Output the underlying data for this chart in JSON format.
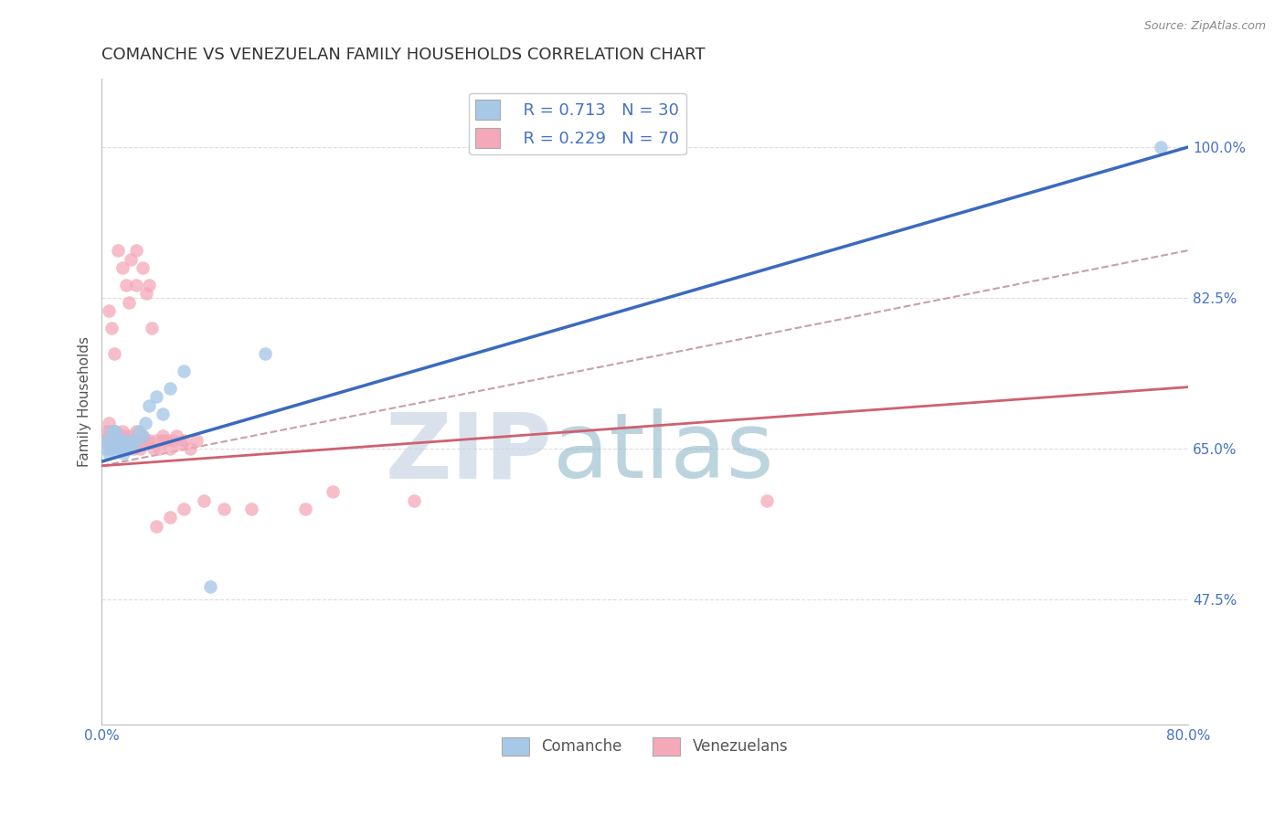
{
  "title": "COMANCHE VS VENEZUELAN FAMILY HOUSEHOLDS CORRELATION CHART",
  "source_text": "Source: ZipAtlas.com",
  "ylabel": "Family Households",
  "xlim": [
    0.0,
    0.8
  ],
  "ylim": [
    0.33,
    1.08
  ],
  "x_tick_labels": [
    "0.0%",
    "80.0%"
  ],
  "x_tick_positions": [
    0.0,
    0.8
  ],
  "y_tick_labels": [
    "47.5%",
    "65.0%",
    "82.5%",
    "100.0%"
  ],
  "y_tick_positions": [
    0.475,
    0.65,
    0.825,
    1.0
  ],
  "legend_R1": "R = 0.713",
  "legend_N1": "N = 30",
  "legend_R2": "R = 0.229",
  "legend_N2": "N = 70",
  "legend_label1": "Comanche",
  "legend_label2": "Venezuelans",
  "color_comanche": "#a8c8e8",
  "color_venezuelan": "#f4a8b8",
  "color_line_comanche": "#3a6abf",
  "color_line_venezuelan": "#d06070",
  "color_dashed": "#c8a0a8",
  "color_title": "#333333",
  "color_source": "#888888",
  "color_blue": "#4472c4",
  "color_ytick_labels": "#4472c4",
  "color_xtick_labels": "#4472c4",
  "title_fontsize": 13,
  "axis_label_fontsize": 11,
  "tick_fontsize": 11,
  "background_color": "#ffffff",
  "comanche_x": [
    0.003,
    0.004,
    0.005,
    0.006,
    0.007,
    0.008,
    0.009,
    0.01,
    0.01,
    0.011,
    0.012,
    0.013,
    0.015,
    0.016,
    0.018,
    0.02,
    0.02,
    0.022,
    0.025,
    0.027,
    0.03,
    0.032,
    0.035,
    0.04,
    0.045,
    0.05,
    0.06,
    0.08,
    0.12,
    0.78
  ],
  "comanche_y": [
    0.66,
    0.65,
    0.645,
    0.655,
    0.67,
    0.66,
    0.665,
    0.65,
    0.67,
    0.655,
    0.66,
    0.65,
    0.66,
    0.645,
    0.65,
    0.65,
    0.66,
    0.655,
    0.66,
    0.67,
    0.665,
    0.68,
    0.7,
    0.71,
    0.69,
    0.72,
    0.74,
    0.49,
    0.76,
    1.0
  ],
  "venezuelan_x": [
    0.002,
    0.003,
    0.004,
    0.005,
    0.005,
    0.006,
    0.007,
    0.007,
    0.008,
    0.009,
    0.01,
    0.01,
    0.011,
    0.012,
    0.013,
    0.014,
    0.015,
    0.015,
    0.016,
    0.017,
    0.018,
    0.019,
    0.02,
    0.02,
    0.021,
    0.022,
    0.023,
    0.025,
    0.025,
    0.027,
    0.028,
    0.03,
    0.03,
    0.032,
    0.033,
    0.035,
    0.037,
    0.038,
    0.04,
    0.042,
    0.045,
    0.045,
    0.048,
    0.05,
    0.052,
    0.055,
    0.058,
    0.06,
    0.065,
    0.07,
    0.005,
    0.007,
    0.009,
    0.012,
    0.015,
    0.018,
    0.02,
    0.025,
    0.03,
    0.035,
    0.04,
    0.05,
    0.06,
    0.075,
    0.09,
    0.11,
    0.15,
    0.17,
    0.23,
    0.49
  ],
  "venezuelan_y": [
    0.66,
    0.67,
    0.655,
    0.68,
    0.66,
    0.67,
    0.65,
    0.665,
    0.655,
    0.66,
    0.66,
    0.67,
    0.655,
    0.665,
    0.66,
    0.65,
    0.655,
    0.67,
    0.665,
    0.65,
    0.66,
    0.65,
    0.665,
    0.655,
    0.87,
    0.66,
    0.65,
    0.67,
    0.84,
    0.66,
    0.65,
    0.665,
    0.655,
    0.66,
    0.83,
    0.66,
    0.79,
    0.65,
    0.66,
    0.65,
    0.66,
    0.665,
    0.66,
    0.65,
    0.66,
    0.665,
    0.655,
    0.66,
    0.65,
    0.66,
    0.81,
    0.79,
    0.76,
    0.88,
    0.86,
    0.84,
    0.82,
    0.88,
    0.86,
    0.84,
    0.56,
    0.57,
    0.58,
    0.59,
    0.58,
    0.58,
    0.58,
    0.6,
    0.59,
    0.59
  ],
  "grid_color": "#dddddd",
  "grid_linestyle": "--",
  "watermark_zip": "ZIP",
  "watermark_atlas": "atlas",
  "watermark_color_zip": "#c0d0e0",
  "watermark_color_atlas": "#90b8c8",
  "watermark_alpha": 0.6
}
